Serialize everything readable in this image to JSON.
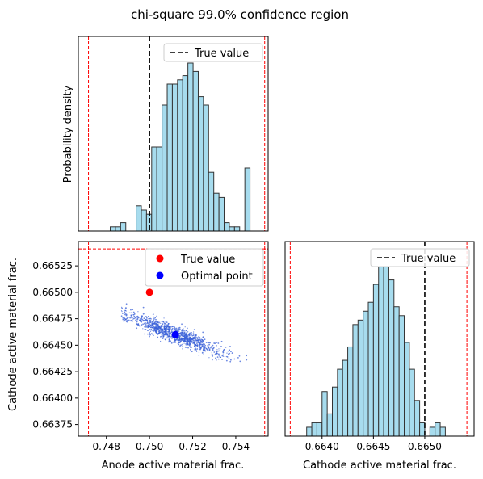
{
  "title": "chi-square 99.0% confidence region",
  "chart_data": [
    {
      "type": "histogram",
      "panel": "top-left",
      "ylabel": "Probability density",
      "xlim": [
        0.7467,
        0.7555
      ],
      "bin_edges": [
        0.74818,
        0.74842,
        0.74866,
        0.7489,
        0.74914,
        0.74938,
        0.74962,
        0.74986,
        0.7501,
        0.75034,
        0.75058,
        0.75082,
        0.75106,
        0.7513,
        0.75154,
        0.75178,
        0.75202,
        0.75226,
        0.7525,
        0.75274,
        0.75298,
        0.75322,
        0.75346,
        0.7537,
        0.75394,
        0.75418,
        0.75442,
        0.75466
      ],
      "counts": [
        1,
        1,
        2,
        0,
        0,
        6,
        5,
        4,
        20,
        20,
        30,
        35,
        35,
        36,
        37,
        40,
        38,
        32,
        30,
        14,
        9,
        8,
        2,
        1,
        1,
        0,
        15
      ],
      "true_line": 0.75,
      "bounds": [
        0.74717,
        0.75534
      ],
      "legend": "True value",
      "legend_position": "top-right"
    },
    {
      "type": "scatter",
      "panel": "bottom-left",
      "xlabel": "Anode active material frac.",
      "ylabel": "Cathode active material frac.",
      "xlim": [
        0.7467,
        0.7555
      ],
      "ylim": [
        0.66364,
        0.66548
      ],
      "xticks": [
        "0.748",
        "0.750",
        "0.752",
        "0.754"
      ],
      "yticks": [
        "0.66375",
        "0.66400",
        "0.66425",
        "0.66450",
        "0.66475",
        "0.66500",
        "0.66525"
      ],
      "cloud": {
        "center": [
          0.7512,
          0.6646
        ],
        "slope": -0.077,
        "x_range": [
          0.7487,
          0.7545
        ],
        "spread": 0.00012,
        "n": 1200
      },
      "true_point": {
        "x": 0.75,
        "y": 0.665
      },
      "optimal_point": {
        "x": 0.7512,
        "y": 0.6646
      },
      "bounds_x": [
        0.74717,
        0.75534
      ],
      "bounds_y": [
        0.66369,
        0.66541
      ],
      "legend": [
        "True value",
        "Optimal point"
      ],
      "legend_position": "top-right"
    },
    {
      "type": "histogram",
      "panel": "bottom-right",
      "xlabel": "Cathode active material frac.",
      "xlim": [
        0.66364,
        0.66548
      ],
      "xticks": [
        "0.6640",
        "0.6645",
        "0.6650"
      ],
      "bin_edges": [
        0.66385,
        0.6639,
        0.66395,
        0.664,
        0.66405,
        0.6641,
        0.66415,
        0.6642,
        0.66425,
        0.6643,
        0.66435,
        0.6644,
        0.66445,
        0.6645,
        0.66455,
        0.6646,
        0.66465,
        0.6647,
        0.66475,
        0.6648,
        0.66485,
        0.6649,
        0.66495,
        0.665,
        0.66505,
        0.6651,
        0.66515,
        0.6652
      ],
      "counts": [
        2,
        3,
        3,
        10,
        5,
        11,
        15,
        17,
        20,
        25,
        26,
        28,
        30,
        34,
        38,
        38,
        35,
        29,
        27,
        21,
        15,
        8,
        3,
        0,
        2,
        3,
        2
      ],
      "true_line": 0.665,
      "bounds": [
        0.66369,
        0.66541
      ],
      "legend": "True value",
      "legend_position": "top-right"
    }
  ]
}
